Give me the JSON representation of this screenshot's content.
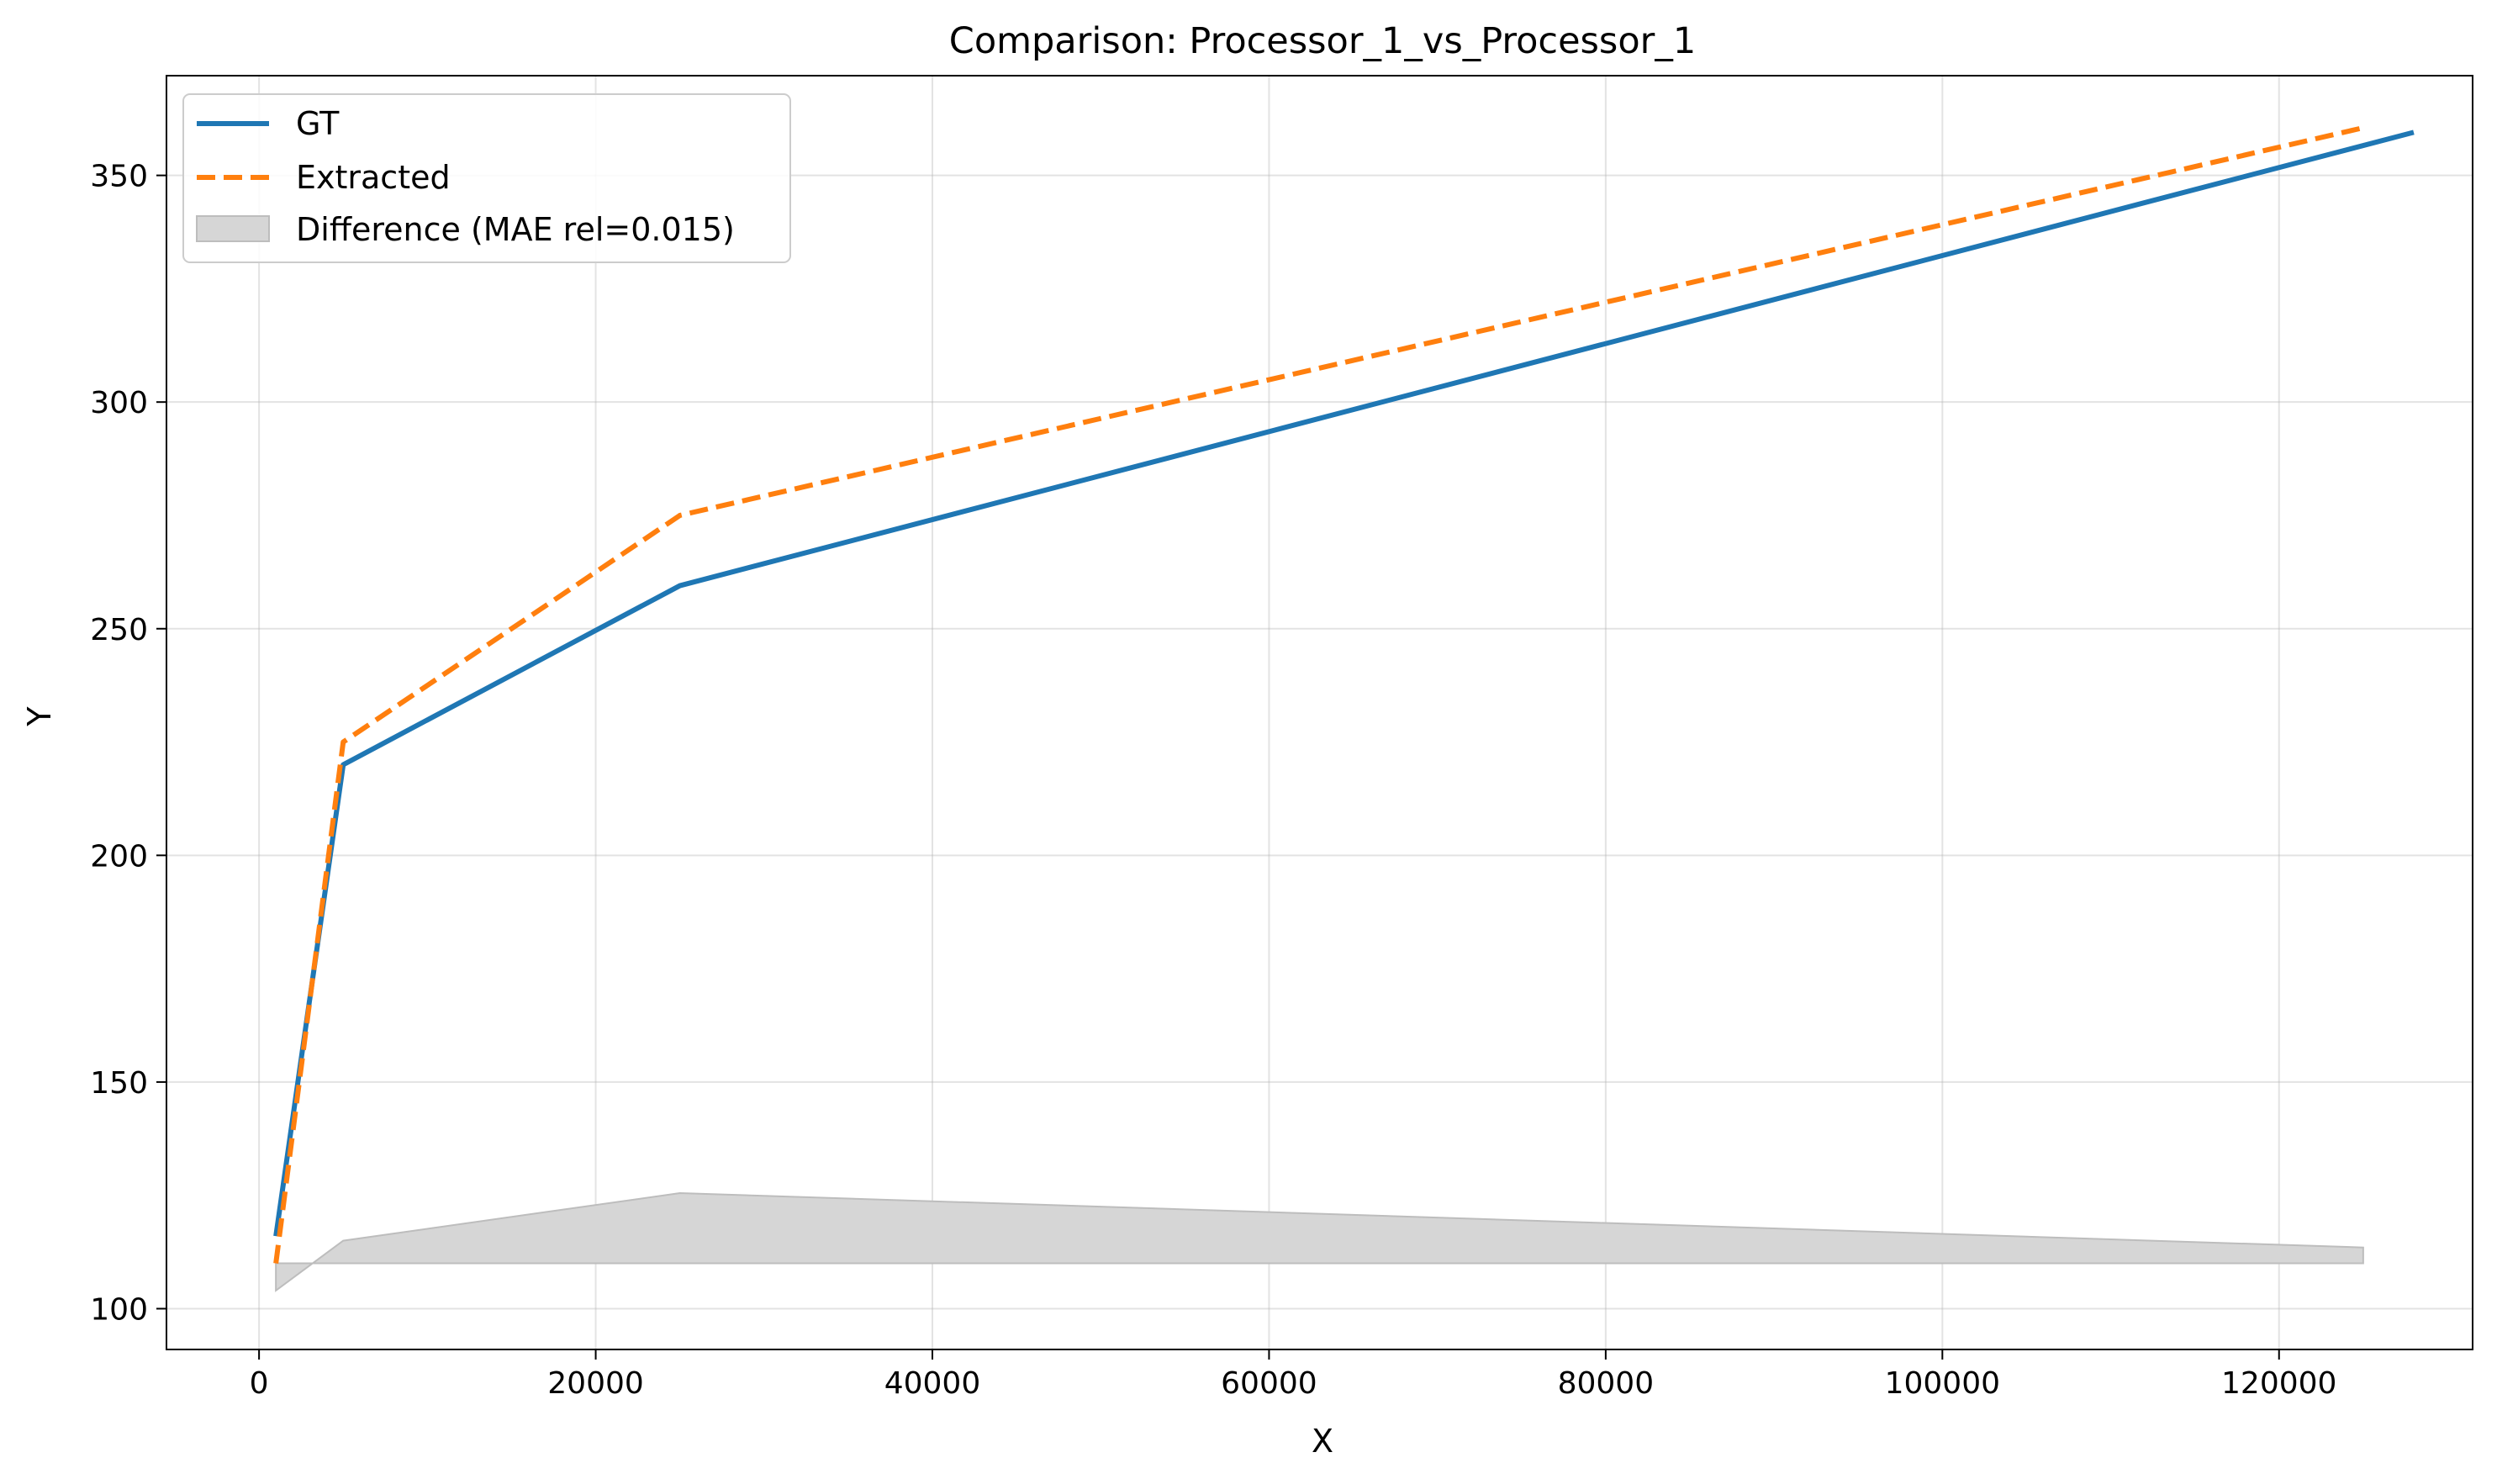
{
  "chart_data": {
    "type": "line",
    "title": "Comparison: Processor_1_vs_Processor_1",
    "xlabel": "X",
    "ylabel": "Y",
    "xlim": [
      -5500,
      131500
    ],
    "ylim": [
      91,
      372
    ],
    "grid": true,
    "legend_position": "top-left",
    "x_ticks": [
      0,
      20000,
      40000,
      60000,
      80000,
      100000,
      120000
    ],
    "x_tick_labels": [
      "0",
      "20000",
      "40000",
      "60000",
      "80000",
      "100000",
      "120000"
    ],
    "y_ticks": [
      100,
      150,
      200,
      250,
      300,
      350
    ],
    "y_tick_labels": [
      "100",
      "150",
      "200",
      "250",
      "300",
      "350"
    ],
    "series": [
      {
        "name": "GT",
        "style": "solid",
        "color": "#1f77b4",
        "x": [
          1000,
          5000,
          25000,
          128000
        ],
        "y": [
          116,
          220,
          259.5,
          359.5
        ]
      },
      {
        "name": "Extracted",
        "style": "dashed",
        "color": "#ff7f0e",
        "x": [
          1000,
          5000,
          25000,
          125000
        ],
        "y": [
          110,
          225,
          275,
          360.5
        ]
      }
    ],
    "difference": {
      "name": "Difference (MAE rel=0.015)",
      "color": "#d6d6d6",
      "edge_color": "#bdbdbd",
      "baseline": 110,
      "x": [
        1000,
        5000,
        25000,
        125000
      ],
      "y": [
        104,
        115,
        125.5,
        113.5
      ]
    }
  }
}
